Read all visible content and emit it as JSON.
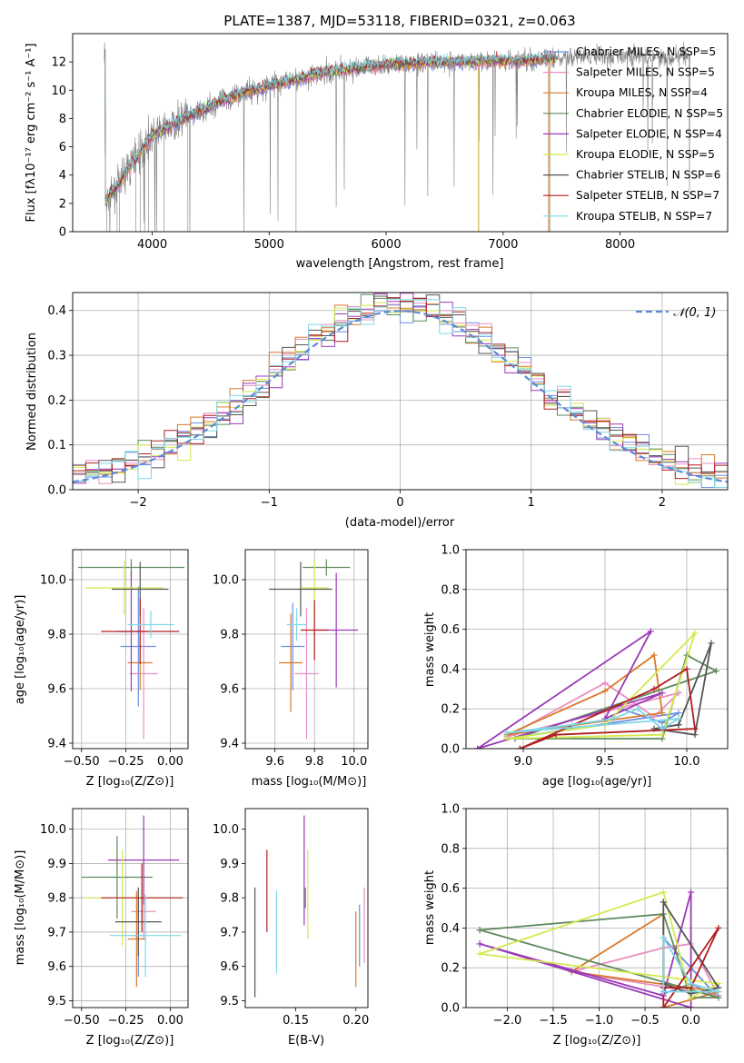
{
  "colors": {
    "chabrier_miles": "#6b8fe0",
    "salpeter_miles": "#e98fc0",
    "kroupa_miles": "#d97a2a",
    "chabrier_elodie": "#5e8a5e",
    "salpeter_elodie": "#9b3ab5",
    "kroupa_elodie": "#d4ea4e",
    "chabrier_stelib": "#555555",
    "salpeter_stelib": "#b01f1f",
    "kroupa_stelib": "#7fd7e6",
    "gray_spectrum": "#808080",
    "normal_curve": "#5b8bd6"
  },
  "chart_data": [
    {
      "id": "spectrum",
      "type": "line",
      "title": "PLATE=1387, MJD=53118, FIBERID=0321, z=0.063",
      "xlabel": "wavelength [Angstrom, rest frame]",
      "ylabel": "Flux [fλ10⁻¹⁷ erg cm⁻² s⁻¹ A⁻¹]",
      "xlim": [
        3320,
        8920
      ],
      "ylim": [
        0,
        14
      ],
      "xticks": [
        4000,
        5000,
        6000,
        7000,
        8000
      ],
      "yticks": [
        0,
        2,
        4,
        6,
        8,
        10,
        12
      ],
      "grid": false,
      "legend_position": "right",
      "legend": [
        "Chabrier MILES, N_SSP=5",
        "Salpeter MILES, N_SSP=5",
        "Kroupa MILES, N_SSP=4",
        "Chabrier ELODIE, N_SSP=5",
        "Salpeter ELODIE, N_SSP=4",
        "Kroupa ELODIE, N_SSP=5",
        "Chabrier STELIB, N_SSP=6",
        "Salpeter STELIB, N_SSP=7",
        "Kroupa STELIB, N_SSP=7"
      ],
      "continuum": {
        "x": [
          3600,
          3700,
          3800,
          3900,
          4000,
          4200,
          4400,
          4600,
          4800,
          5000,
          5200,
          5400,
          5600,
          5800,
          6000,
          6200,
          6400,
          6600,
          6800,
          7000,
          7200,
          7400,
          7600
        ],
        "y": [
          2.2,
          3.2,
          4.5,
          5.6,
          6.8,
          7.7,
          8.5,
          9.3,
          9.9,
          10.3,
          10.7,
          11.1,
          11.4,
          11.6,
          11.8,
          11.9,
          12.0,
          12.0,
          12.05,
          12.1,
          12.1,
          12.2,
          12.3
        ]
      },
      "gray_extent_x": [
        3590,
        8600
      ]
    },
    {
      "id": "residuals",
      "type": "line",
      "xlabel": "(data-model)/error",
      "ylabel": "Normed distribution",
      "xlim": [
        -2.5,
        2.5
      ],
      "ylim": [
        0,
        0.44
      ],
      "xticks": [
        -2,
        -1,
        0,
        1,
        2
      ],
      "yticks": [
        0.0,
        0.1,
        0.2,
        0.3,
        0.4
      ],
      "grid": true,
      "legend_position": "top-right",
      "legend": [
        "𝒩(0, 1)"
      ],
      "bin_edges_start": -2.5,
      "bin_width": 0.1
    },
    {
      "id": "age_vs_Z",
      "type": "scatter",
      "xlabel": "Z [log₁₀(Z/Z⊙)]",
      "ylabel": "age  [log₁₀(age/yr)]",
      "xlim": [
        -0.55,
        0.1
      ],
      "ylim": [
        9.38,
        10.11
      ],
      "xticks": [
        -0.5,
        -0.25,
        0.0
      ],
      "yticks": [
        9.4,
        9.6,
        9.8,
        10.0
      ],
      "grid": true,
      "points": [
        {
          "model": "chabrier_miles",
          "x": -0.18,
          "y": 9.755,
          "xerr": 0.1,
          "yerr": 0.22
        },
        {
          "model": "salpeter_miles",
          "x": -0.15,
          "y": 9.655,
          "xerr": 0.08,
          "yerr": 0.24
        },
        {
          "model": "kroupa_miles",
          "x": -0.17,
          "y": 9.695,
          "xerr": 0.07,
          "yerr": 0.1
        },
        {
          "model": "chabrier_elodie",
          "x": -0.22,
          "y": 10.045,
          "xerr": 0.3,
          "yerr": 0.03
        },
        {
          "model": "salpeter_elodie",
          "x": -0.22,
          "y": 9.81,
          "xerr": 0.08,
          "yerr": 0.22
        },
        {
          "model": "kroupa_elodie",
          "x": -0.26,
          "y": 9.97,
          "xerr": 0.22,
          "yerr": 0.1
        },
        {
          "model": "chabrier_stelib",
          "x": -0.17,
          "y": 9.965,
          "xerr": 0.16,
          "yerr": 0.1
        },
        {
          "model": "salpeter_stelib",
          "x": -0.17,
          "y": 9.81,
          "xerr": 0.22,
          "yerr": 0.12
        },
        {
          "model": "kroupa_stelib",
          "x": -0.11,
          "y": 9.835,
          "xerr": 0.13,
          "yerr": 0.05
        }
      ]
    },
    {
      "id": "age_vs_mass",
      "type": "scatter",
      "xlabel": "mass [log₁₀(M/M⊙)]",
      "ylabel": "",
      "xlim": [
        9.45,
        10.07
      ],
      "ylim": [
        9.38,
        10.11
      ],
      "xticks": [
        9.6,
        9.8,
        10.0
      ],
      "yticks": [
        9.4,
        9.6,
        9.8,
        10.0
      ],
      "grid": true,
      "points": [
        {
          "model": "chabrier_miles",
          "x": 9.69,
          "y": 9.755,
          "xerr": 0.06,
          "yerr": 0.16
        },
        {
          "model": "salpeter_miles",
          "x": 9.76,
          "y": 9.655,
          "xerr": 0.06,
          "yerr": 0.24
        },
        {
          "model": "kroupa_miles",
          "x": 9.68,
          "y": 9.695,
          "xerr": 0.06,
          "yerr": 0.18
        },
        {
          "model": "chabrier_elodie",
          "x": 9.86,
          "y": 10.045,
          "xerr": 0.12,
          "yerr": 0.03
        },
        {
          "model": "salpeter_elodie",
          "x": 9.91,
          "y": 9.815,
          "xerr": 0.11,
          "yerr": 0.21
        },
        {
          "model": "kroupa_elodie",
          "x": 9.8,
          "y": 9.97,
          "xerr": 0.07,
          "yerr": 0.1
        },
        {
          "model": "chabrier_stelib",
          "x": 9.73,
          "y": 9.965,
          "xerr": 0.16,
          "yerr": 0.1
        },
        {
          "model": "salpeter_stelib",
          "x": 9.8,
          "y": 9.815,
          "xerr": 0.07,
          "yerr": 0.11
        },
        {
          "model": "kroupa_stelib",
          "x": 9.71,
          "y": 9.835,
          "xerr": 0.05,
          "yerr": 0.06
        }
      ]
    },
    {
      "id": "weight_vs_age",
      "type": "line",
      "xlabel": "age  [log₁₀(age/yr)]",
      "ylabel": "mass weight",
      "xlim": [
        8.65,
        10.25
      ],
      "ylim": [
        0,
        1.0
      ],
      "xticks": [
        9.0,
        9.5,
        10.0
      ],
      "yticks": [
        0.0,
        0.2,
        0.4,
        0.6,
        0.8,
        1.0
      ],
      "grid": true,
      "series": [
        {
          "model": "chabrier_miles",
          "x": [
            8.9,
            9.5,
            9.6,
            9.85,
            9.95,
            8.9
          ],
          "y": [
            0.05,
            0.12,
            0.2,
            0.13,
            0.18,
            0.05
          ]
        },
        {
          "model": "salpeter_miles",
          "x": [
            8.9,
            9.5,
            9.8,
            9.95,
            8.9
          ],
          "y": [
            0.06,
            0.33,
            0.16,
            0.28,
            0.06
          ]
        },
        {
          "model": "kroupa_miles",
          "x": [
            8.9,
            9.5,
            9.8,
            9.85,
            8.9
          ],
          "y": [
            0.07,
            0.29,
            0.47,
            0.18,
            0.07
          ]
        },
        {
          "model": "chabrier_elodie",
          "x": [
            8.95,
            9.85,
            10.0,
            10.18,
            8.95
          ],
          "y": [
            0.05,
            0.05,
            0.47,
            0.39,
            0.05
          ]
        },
        {
          "model": "salpeter_elodie",
          "x": [
            8.72,
            9.78,
            9.5,
            9.85,
            8.72
          ],
          "y": [
            0.0,
            0.59,
            0.15,
            0.28,
            0.0
          ]
        },
        {
          "model": "kroupa_elodie",
          "x": [
            8.9,
            9.85,
            10.05,
            9.5,
            8.9
          ],
          "y": [
            0.05,
            0.07,
            0.58,
            0.12,
            0.05
          ]
        },
        {
          "model": "chabrier_stelib",
          "x": [
            9.95,
            10.15,
            10.05,
            9.8,
            9.95
          ],
          "y": [
            0.12,
            0.53,
            0.07,
            0.1,
            0.12
          ]
        },
        {
          "model": "salpeter_stelib",
          "x": [
            8.98,
            9.8,
            10.0,
            10.05,
            9.2,
            8.98
          ],
          "y": [
            0.0,
            0.3,
            0.4,
            0.1,
            0.07,
            0.0
          ]
        },
        {
          "model": "kroupa_stelib",
          "x": [
            8.9,
            9.3,
            9.55,
            9.7,
            9.85,
            9.95,
            8.9
          ],
          "y": [
            0.08,
            0.12,
            0.15,
            0.2,
            0.1,
            0.15,
            0.08
          ]
        }
      ]
    },
    {
      "id": "mass_vs_Z",
      "type": "scatter",
      "xlabel": "Z [log₁₀(Z/Z⊙)]",
      "ylabel": "mass [log₁₀(M/M⊙)]",
      "xlim": [
        -0.55,
        0.1
      ],
      "ylim": [
        9.48,
        10.06
      ],
      "xticks": [
        -0.5,
        -0.25,
        0.0
      ],
      "yticks": [
        9.5,
        9.6,
        9.7,
        9.8,
        9.9,
        10.0
      ],
      "grid": true,
      "points": [
        {
          "model": "chabrier_miles",
          "x": -0.18,
          "y": 9.69,
          "xerr": 0.04,
          "yerr": 0.12
        },
        {
          "model": "salpeter_miles",
          "x": -0.15,
          "y": 9.76,
          "xerr": 0.07,
          "yerr": 0.08
        },
        {
          "model": "kroupa_miles",
          "x": -0.19,
          "y": 9.68,
          "xerr": 0.05,
          "yerr": 0.14
        },
        {
          "model": "chabrier_elodie",
          "x": -0.3,
          "y": 9.86,
          "xerr": 0.2,
          "yerr": 0.12
        },
        {
          "model": "salpeter_elodie",
          "x": -0.15,
          "y": 9.91,
          "xerr": 0.2,
          "yerr": 0.13
        },
        {
          "model": "kroupa_elodie",
          "x": -0.27,
          "y": 9.8,
          "xerr": 0.22,
          "yerr": 0.14
        },
        {
          "model": "chabrier_stelib",
          "x": -0.18,
          "y": 9.73,
          "xerr": 0.13,
          "yerr": 0.1
        },
        {
          "model": "salpeter_stelib",
          "x": -0.16,
          "y": 9.8,
          "xerr": 0.23,
          "yerr": 0.1
        },
        {
          "model": "kroupa_stelib",
          "x": -0.14,
          "y": 9.69,
          "xerr": 0.2,
          "yerr": 0.12
        }
      ]
    },
    {
      "id": "mass_vs_ebv",
      "type": "scatter",
      "xlabel": "E(B-V)",
      "ylabel": "",
      "xlim": [
        0.108,
        0.21
      ],
      "ylim": [
        9.48,
        10.06
      ],
      "xticks": [
        0.15,
        0.2
      ],
      "yticks": [
        9.5,
        9.6,
        9.7,
        9.8,
        9.9,
        10.0
      ],
      "grid": false,
      "points": [
        {
          "model": "chabrier_miles",
          "x": 0.203,
          "y": 9.69,
          "xerr": 0,
          "yerr": 0.09
        },
        {
          "model": "salpeter_miles",
          "x": 0.207,
          "y": 9.72,
          "xerr": 0,
          "yerr": 0.11
        },
        {
          "model": "kroupa_miles",
          "x": 0.2,
          "y": 9.65,
          "xerr": 0,
          "yerr": 0.11
        },
        {
          "model": "chabrier_elodie",
          "x": 0.158,
          "y": 9.8,
          "xerr": 0,
          "yerr": 0.03
        },
        {
          "model": "salpeter_elodie",
          "x": 0.157,
          "y": 9.88,
          "xerr": 0,
          "yerr": 0.16
        },
        {
          "model": "kroupa_elodie",
          "x": 0.16,
          "y": 9.81,
          "xerr": 0,
          "yerr": 0.13
        },
        {
          "model": "chabrier_stelib",
          "x": 0.116,
          "y": 9.67,
          "xerr": 0,
          "yerr": 0.16
        },
        {
          "model": "salpeter_stelib",
          "x": 0.126,
          "y": 9.82,
          "xerr": 0,
          "yerr": 0.12
        },
        {
          "model": "kroupa_stelib",
          "x": 0.134,
          "y": 9.7,
          "xerr": 0,
          "yerr": 0.12
        }
      ]
    },
    {
      "id": "weight_vs_Z",
      "type": "line",
      "xlabel": "Z [log₁₀(Z/Z⊙)]",
      "ylabel": "mass weight",
      "xlim": [
        -2.45,
        0.4
      ],
      "ylim": [
        0,
        1.0
      ],
      "xticks": [
        -2.0,
        -1.5,
        -1.0,
        -0.5,
        0.0
      ],
      "yticks": [
        0.0,
        0.2,
        0.4,
        0.6,
        0.8,
        1.0
      ],
      "grid": true,
      "series": [
        {
          "model": "chabrier_miles",
          "x": [
            -0.3,
            -0.3,
            0.0,
            0.3,
            -0.3
          ],
          "y": [
            0.35,
            0.07,
            0.12,
            0.05,
            0.35
          ]
        },
        {
          "model": "salpeter_miles",
          "x": [
            -0.3,
            0.0,
            0.3,
            -1.3,
            -0.3
          ],
          "y": [
            0.3,
            0.32,
            0.06,
            0.18,
            0.3
          ]
        },
        {
          "model": "kroupa_miles",
          "x": [
            -1.3,
            -0.3,
            -0.3,
            0.3,
            -1.3
          ],
          "y": [
            0.18,
            0.47,
            0.0,
            0.08,
            0.18
          ]
        },
        {
          "model": "chabrier_elodie",
          "x": [
            -2.3,
            -0.3,
            0.0,
            0.3,
            -2.3
          ],
          "y": [
            0.39,
            0.47,
            0.05,
            0.05,
            0.39
          ]
        },
        {
          "model": "salpeter_elodie",
          "x": [
            -2.3,
            -0.3,
            0.0,
            0.0,
            -2.3
          ],
          "y": [
            0.32,
            0.06,
            0.58,
            0.0,
            0.32
          ]
        },
        {
          "model": "kroupa_elodie",
          "x": [
            -2.3,
            -0.3,
            0.0,
            0.3,
            -2.3
          ],
          "y": [
            0.27,
            0.58,
            0.05,
            0.12,
            0.27
          ]
        },
        {
          "model": "chabrier_stelib",
          "x": [
            -0.3,
            -0.3,
            0.0,
            0.3,
            -0.3
          ],
          "y": [
            0.53,
            0.12,
            0.07,
            0.1,
            0.53
          ]
        },
        {
          "model": "salpeter_stelib",
          "x": [
            -0.3,
            -0.3,
            0.0,
            0.3,
            -0.3
          ],
          "y": [
            0.0,
            0.1,
            0.1,
            0.4,
            0.0
          ]
        },
        {
          "model": "kroupa_stelib",
          "x": [
            -0.3,
            -0.3,
            0.0,
            0.3,
            -0.3
          ],
          "y": [
            0.08,
            0.35,
            0.12,
            0.08,
            0.08
          ]
        }
      ]
    }
  ]
}
